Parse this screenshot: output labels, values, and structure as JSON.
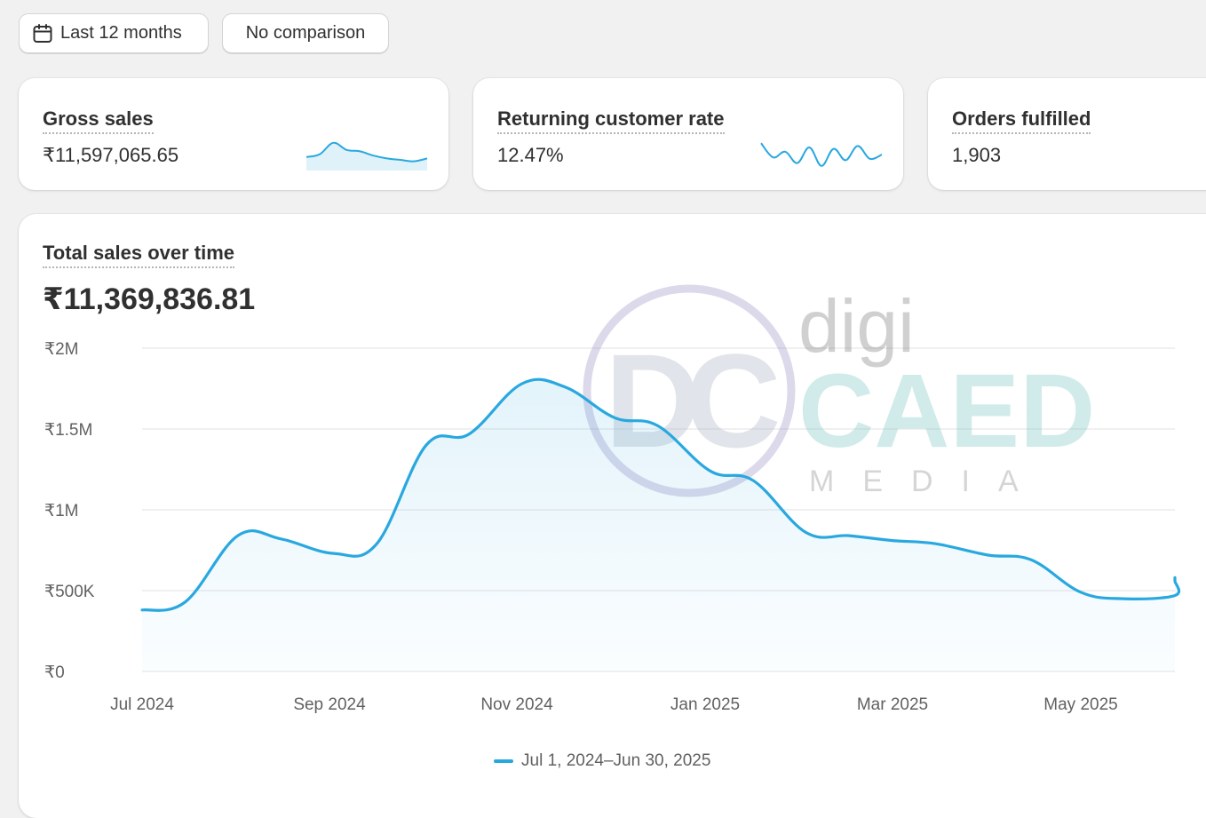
{
  "toolbar": {
    "period_label": "Last 12 months",
    "comparison_label": "No comparison"
  },
  "metrics": [
    {
      "label": "Gross sales",
      "value": "₹11,597,065.65"
    },
    {
      "label": "Returning customer rate",
      "value": "12.47%"
    },
    {
      "label": "Orders fulfilled",
      "value": "1,903"
    }
  ],
  "colors": {
    "accent": "#29a8df",
    "background": "#f1f1f1",
    "card": "#ffffff",
    "text": "#303030"
  },
  "icons": {
    "period": "calendar-icon"
  },
  "watermark": {
    "text_top": "digi",
    "text_mid": "CAED",
    "text_bottom": "MEDIA"
  },
  "chart": {
    "title": "Total sales over time",
    "total": "₹11,369,836.81",
    "legend": "Jul 1, 2024–Jun 30, 2025"
  },
  "chart_data": {
    "type": "area",
    "title": "Total sales over time",
    "x": [
      "2024-07-01",
      "2024-07-15",
      "2024-08-01",
      "2024-08-15",
      "2024-09-01",
      "2024-09-15",
      "2024-10-01",
      "2024-10-15",
      "2024-11-01",
      "2024-11-15",
      "2024-12-01",
      "2024-12-15",
      "2025-01-01",
      "2025-01-15",
      "2025-02-01",
      "2025-02-15",
      "2025-03-01",
      "2025-03-15",
      "2025-04-01",
      "2025-04-15",
      "2025-05-01",
      "2025-05-15",
      "2025-06-01",
      "2025-06-15",
      "2025-06-30"
    ],
    "series": [
      {
        "name": "Jul 1, 2024–Jun 30, 2025",
        "values": [
          380000,
          430000,
          840000,
          820000,
          730000,
          790000,
          1400000,
          1470000,
          1780000,
          1760000,
          1570000,
          1520000,
          1240000,
          1180000,
          860000,
          840000,
          810000,
          790000,
          720000,
          690000,
          490000,
          450000,
          470000,
          560000,
          580000
        ]
      }
    ],
    "x_tick_labels": [
      "Jul 2024",
      "Sep 2024",
      "Nov 2024",
      "Jan 2025",
      "Mar 2025",
      "May 2025"
    ],
    "y_tick_labels": [
      "₹0",
      "₹500K",
      "₹1M",
      "₹1.5M",
      "₹2M"
    ],
    "ylim": [
      0,
      2000000
    ],
    "grid": true,
    "legend_position": "bottom-center"
  },
  "sparklines": {
    "gross_sales": [
      0.35,
      0.45,
      0.85,
      0.6,
      0.55,
      0.4,
      0.3,
      0.25,
      0.2,
      0.3
    ],
    "returning_rate": [
      0.9,
      0.4,
      0.6,
      0.2,
      0.75,
      0.1,
      0.7,
      0.3,
      0.8,
      0.35,
      0.5
    ]
  }
}
